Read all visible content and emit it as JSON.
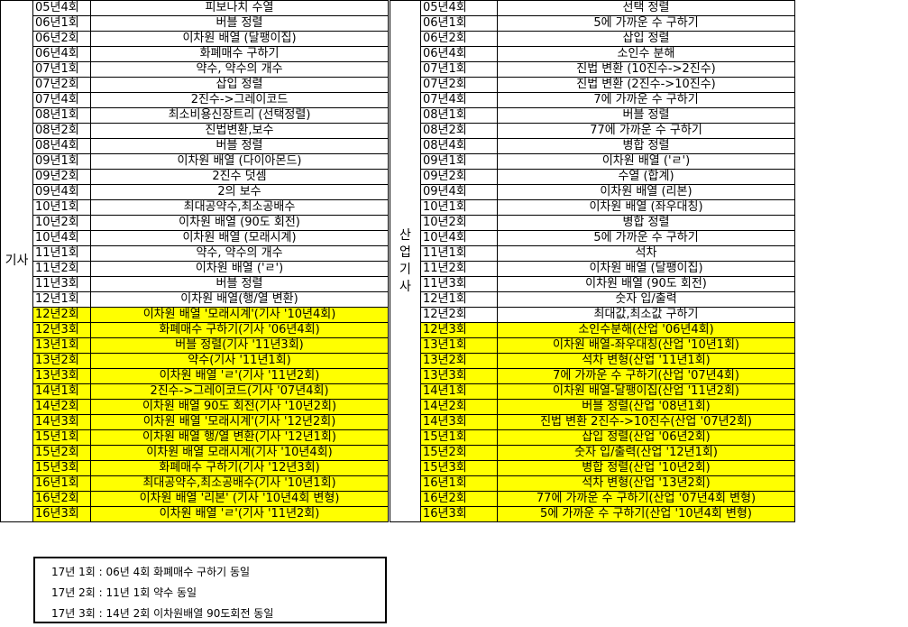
{
  "left": {
    "group": "기사",
    "rows": [
      {
        "code": "05년4회",
        "topic": "피보나치 수열",
        "hl": false
      },
      {
        "code": "06년1회",
        "topic": "버블 정렬",
        "hl": false
      },
      {
        "code": "06년2회",
        "topic": "이차원 배열 (달팽이집)",
        "hl": false
      },
      {
        "code": "06년4회",
        "topic": "화폐매수 구하기",
        "hl": false
      },
      {
        "code": "07년1회",
        "topic": "약수, 약수의 개수",
        "hl": false
      },
      {
        "code": "07년2회",
        "topic": "삽입 정렬",
        "hl": false
      },
      {
        "code": "07년4회",
        "topic": "2진수->그레이코드",
        "hl": false
      },
      {
        "code": "08년1회",
        "topic": "최소비용신장트리 (선택정렬)",
        "hl": false
      },
      {
        "code": "08년2회",
        "topic": "진법변환,보수",
        "hl": false
      },
      {
        "code": "08년4회",
        "topic": "버블 정렬",
        "hl": false
      },
      {
        "code": "09년1회",
        "topic": "이차원 배열 (다이아몬드)",
        "hl": false
      },
      {
        "code": "09년2회",
        "topic": "2진수 덧셈",
        "hl": false
      },
      {
        "code": "09년4회",
        "topic": "2의 보수",
        "hl": false
      },
      {
        "code": "10년1회",
        "topic": "최대공약수,최소공배수",
        "hl": false
      },
      {
        "code": "10년2회",
        "topic": "이차원 배열 (90도 회전)",
        "hl": false
      },
      {
        "code": "10년4회",
        "topic": "이차원 배열 (모래시계)",
        "hl": false
      },
      {
        "code": "11년1회",
        "topic": "약수, 약수의 개수",
        "hl": false
      },
      {
        "code": "11년2회",
        "topic": "이차원 배열 ('ㄹ')",
        "hl": false
      },
      {
        "code": "11년3회",
        "topic": "버블 정렬",
        "hl": false
      },
      {
        "code": "12년1회",
        "topic": "이차원 배열(행/열 변환)",
        "hl": false
      },
      {
        "code": "12년2회",
        "topic": "이차원 배열 '모래시계'(기사 '10년4회)",
        "hl": true
      },
      {
        "code": "12년3회",
        "topic": "화폐매수 구하기(기사 '06년4회)",
        "hl": true
      },
      {
        "code": "13년1회",
        "topic": "버블 정렬(기사 '11년3회)",
        "hl": true
      },
      {
        "code": "13년2회",
        "topic": "약수(기사 '11년1회)",
        "hl": true
      },
      {
        "code": "13년3회",
        "topic": "이차원 배열 'ㄹ'(기사 '11년2회)",
        "hl": true
      },
      {
        "code": "14년1회",
        "topic": "2진수->그레이코드(기사 '07년4회)",
        "hl": true
      },
      {
        "code": "14년2회",
        "topic": "이차원 배열 90도 회전(기사 '10년2회)",
        "hl": true
      },
      {
        "code": "14년3회",
        "topic": "이차원 배열 '모래시계'(기사 '12년2회)",
        "hl": true
      },
      {
        "code": "15년1회",
        "topic": "이차원 배열 행/열 변환(기사 '12년1회)",
        "hl": true
      },
      {
        "code": "15년2회",
        "topic": "이차원 배열 모래시계(기사 '10년4회)",
        "hl": true
      },
      {
        "code": "15년3회",
        "topic": "화폐매수 구하기(기사 '12년3회)",
        "hl": true
      },
      {
        "code": "16년1회",
        "topic": "최대공약수,최소공배수(기사 '10년1회)",
        "hl": true
      },
      {
        "code": "16년2회",
        "topic": "이차원 배열 '리본' (기사 '10년4회 변형)",
        "hl": true
      },
      {
        "code": "16년3회",
        "topic": "이차원 배열 'ㄹ'(기사 '11년2회)",
        "hl": true
      }
    ]
  },
  "right": {
    "group": "산업기사",
    "rows": [
      {
        "code": "05년4회",
        "topic": "선택 정렬",
        "hl": false
      },
      {
        "code": "06년1회",
        "topic": "5에 가까운 수 구하기",
        "hl": false
      },
      {
        "code": "06년2회",
        "topic": "삽입 정렬",
        "hl": false
      },
      {
        "code": "06년4회",
        "topic": "소인수 분해",
        "hl": false
      },
      {
        "code": "07년1회",
        "topic": "진법 변환 (10진수->2진수)",
        "hl": false
      },
      {
        "code": "07년2회",
        "topic": "진법 변환 (2진수->10진수)",
        "hl": false
      },
      {
        "code": "07년4회",
        "topic": "7에 가까운 수 구하기",
        "hl": false
      },
      {
        "code": "08년1회",
        "topic": "버블 정렬",
        "hl": false
      },
      {
        "code": "08년2회",
        "topic": "77에 가까운 수 구하기",
        "hl": false
      },
      {
        "code": "08년4회",
        "topic": "병합 정렬",
        "hl": false
      },
      {
        "code": "09년1회",
        "topic": "이차원 배열 ('ㄹ')",
        "hl": false
      },
      {
        "code": "09년2회",
        "topic": "수열 (합계)",
        "hl": false
      },
      {
        "code": "09년4회",
        "topic": "이차원 배열 (리본)",
        "hl": false
      },
      {
        "code": "10년1회",
        "topic": "이차원 배열 (좌우대칭)",
        "hl": false
      },
      {
        "code": "10년2회",
        "topic": "병합 정렬",
        "hl": false
      },
      {
        "code": "10년4회",
        "topic": "5에 가까운 수 구하기",
        "hl": false
      },
      {
        "code": "11년1회",
        "topic": "석차",
        "hl": false
      },
      {
        "code": "11년2회",
        "topic": "이차원 배열 (달팽이집)",
        "hl": false
      },
      {
        "code": "11년3회",
        "topic": "이차원 배열 (90도 회전)",
        "hl": false
      },
      {
        "code": "12년1회",
        "topic": "숫자 입/출력",
        "hl": false
      },
      {
        "code": "12년2회",
        "topic": "최대값,최소값 구하기",
        "hl": false
      },
      {
        "code": "12년3회",
        "topic": "소인수분해(산업 '06년4회)",
        "hl": true
      },
      {
        "code": "13년1회",
        "topic": "이차원 배열-좌우대칭(산업 '10년1회)",
        "hl": true
      },
      {
        "code": "13년2회",
        "topic": "석차 변형(산업 '11년1회)",
        "hl": true
      },
      {
        "code": "13년3회",
        "topic": "7에 가까운 수 구하기(산업 '07년4회)",
        "hl": true
      },
      {
        "code": "14년1회",
        "topic": "이차원 배열-달팽이집(산업 '11년2회)",
        "hl": true
      },
      {
        "code": "14년2회",
        "topic": "버블 정렬(산업 '08년1회)",
        "hl": true
      },
      {
        "code": "14년3회",
        "topic": "진법 변환 2진수->10진수(산업 '07년2회)",
        "hl": true
      },
      {
        "code": "15년1회",
        "topic": "삽입 정렬(산업 '06년2회)",
        "hl": true
      },
      {
        "code": "15년2회",
        "topic": "숫자 입/출력(산업 '12년1회)",
        "hl": true
      },
      {
        "code": "15년3회",
        "topic": "병합 정렬(산업 '10년2회)",
        "hl": true
      },
      {
        "code": "16년1회",
        "topic": "석차 변형(산업 '13년2회)",
        "hl": true
      },
      {
        "code": "16년2회",
        "topic": "77에 가까운 수 구하기(산업 '07년4회 변형)",
        "hl": true
      },
      {
        "code": "16년3회",
        "topic": "5에 가까운 수 구하기(산업 '10년4회 변형)",
        "hl": true
      }
    ]
  },
  "notes": [
    "17년 1회 : 06년 4회 화폐매수 구하기 동일",
    "17년 2회 : 11년 1회 약수 동일",
    "17년 3회 : 14년 2회 이차원배열 90도회전 동일"
  ]
}
